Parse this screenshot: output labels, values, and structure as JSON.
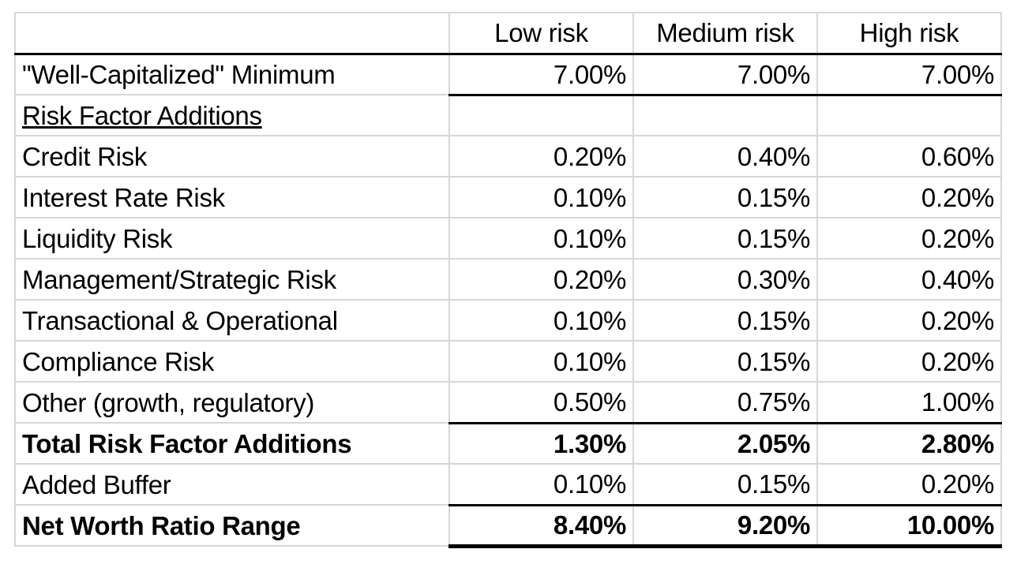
{
  "table": {
    "columns": [
      "",
      "Low risk",
      "Medium risk",
      "High risk"
    ],
    "rows": [
      {
        "label": "\"Well-Capitalized\" Minimum",
        "low": "7.00%",
        "medium": "7.00%",
        "high": "7.00%"
      },
      {
        "label": "Risk Factor Additions",
        "low": "",
        "medium": "",
        "high": ""
      },
      {
        "label": "Credit Risk",
        "low": "0.20%",
        "medium": "0.40%",
        "high": "0.60%"
      },
      {
        "label": "Interest Rate Risk",
        "low": "0.10%",
        "medium": "0.15%",
        "high": "0.20%"
      },
      {
        "label": "Liquidity Risk",
        "low": "0.10%",
        "medium": "0.15%",
        "high": "0.20%"
      },
      {
        "label": "Management/Strategic Risk",
        "low": "0.20%",
        "medium": "0.30%",
        "high": "0.40%"
      },
      {
        "label": "Transactional & Operational",
        "low": "0.10%",
        "medium": "0.15%",
        "high": "0.20%"
      },
      {
        "label": "Compliance Risk",
        "low": "0.10%",
        "medium": "0.15%",
        "high": "0.20%"
      },
      {
        "label": "Other (growth, regulatory)",
        "low": "0.50%",
        "medium": "0.75%",
        "high": "1.00%"
      },
      {
        "label": "Total Risk Factor Additions",
        "low": "1.30%",
        "medium": "2.05%",
        "high": "2.80%"
      },
      {
        "label": "Added Buffer",
        "low": "0.10%",
        "medium": "0.15%",
        "high": "0.20%"
      },
      {
        "label": "Net Worth Ratio Range",
        "low": "8.40%",
        "medium": "9.20%",
        "high": "10.00%"
      }
    ]
  }
}
